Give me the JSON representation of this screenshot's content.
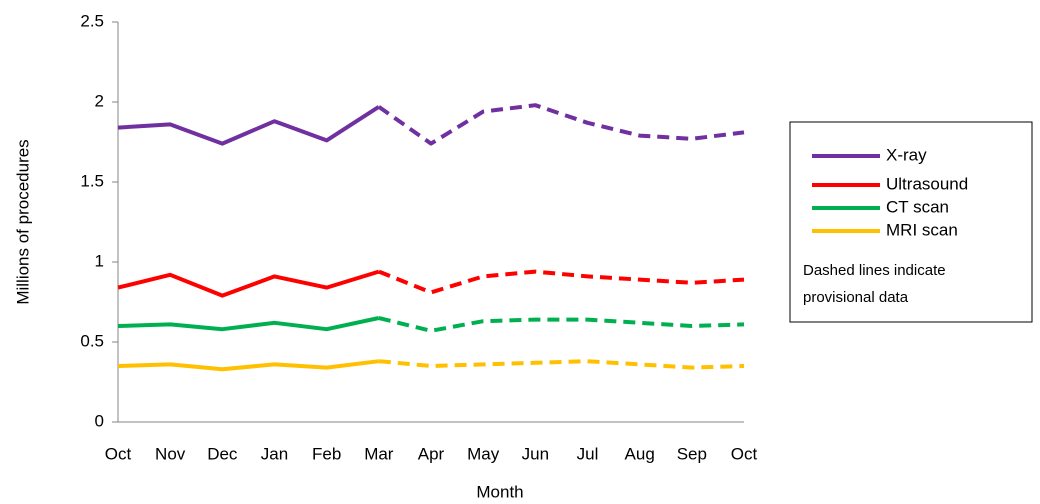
{
  "chart_data": {
    "type": "line",
    "x_label": "Month",
    "y_label": "Millions of procedures",
    "categories": [
      "Oct",
      "Nov",
      "Dec",
      "Jan",
      "Feb",
      "Mar",
      "Apr",
      "May",
      "Jun",
      "Jul",
      "Aug",
      "Sep",
      "Oct"
    ],
    "series": [
      {
        "name": "X-ray",
        "color": "#7030a0",
        "values": [
          1.84,
          1.86,
          1.74,
          1.88,
          1.76,
          1.97,
          1.74,
          1.94,
          1.98,
          1.87,
          1.79,
          1.77,
          1.81
        ]
      },
      {
        "name": "Ultrasound",
        "color": "#ff0000",
        "values": [
          0.84,
          0.92,
          0.79,
          0.91,
          0.84,
          0.94,
          0.81,
          0.91,
          0.94,
          0.91,
          0.89,
          0.87,
          0.89
        ]
      },
      {
        "name": "CT scan",
        "color": "#00b050",
        "values": [
          0.6,
          0.61,
          0.58,
          0.62,
          0.58,
          0.65,
          0.57,
          0.63,
          0.64,
          0.64,
          0.62,
          0.6,
          0.61
        ]
      },
      {
        "name": "MRI scan",
        "color": "#ffc000",
        "values": [
          0.35,
          0.36,
          0.33,
          0.36,
          0.34,
          0.38,
          0.35,
          0.36,
          0.37,
          0.38,
          0.36,
          0.34,
          0.35
        ]
      }
    ],
    "dashed_from_index": 5,
    "legend_note": [
      "Dashed lines indicate",
      "provisional data"
    ],
    "legend": "right",
    "ylim": [
      0,
      2.5
    ],
    "yticks": [
      0,
      0.5,
      1,
      1.5,
      2,
      2.5
    ],
    "grid": false
  }
}
